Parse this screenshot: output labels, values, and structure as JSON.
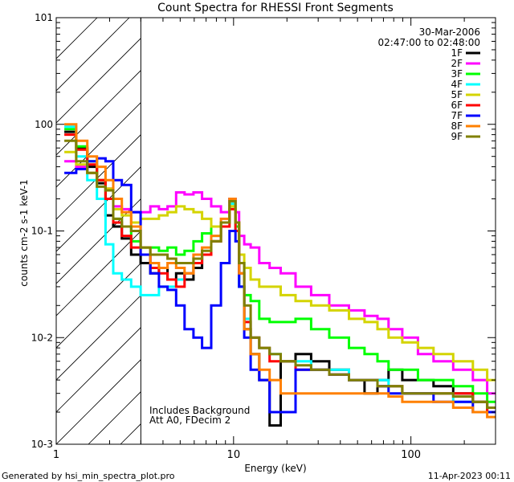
{
  "chart_data": {
    "type": "line",
    "title": "Count Spectra for RHESSI Front Segments",
    "xlabel": "Energy (keV)",
    "ylabel": "counts cm-2 s-1 keV-1",
    "xscale": "log",
    "yscale": "log",
    "xlim": [
      1,
      300
    ],
    "ylim": [
      0.001,
      10
    ],
    "x_tick_labels": [
      "1",
      "10",
      "100"
    ],
    "y_tick_labels": [
      "10-3",
      "10-2",
      "10-1",
      "100",
      "101"
    ],
    "date": "30-Mar-2006",
    "time_range": "02:47:00 to 02:48:00",
    "annotations": [
      "Includes Background",
      "Att A0, FDecim 2"
    ],
    "attenuator_cutoff_keV": 3,
    "footer_left": "Generated by hsi_min_spectra_plot.pro",
    "footer_right": "11-Apr-2023 00:11",
    "x": [
      1.2,
      1.4,
      1.6,
      1.8,
      2.0,
      2.2,
      2.5,
      2.8,
      3.2,
      3.6,
      4.0,
      4.5,
      5.0,
      5.6,
      6.3,
      7.0,
      8.0,
      9.0,
      10.0,
      10.5,
      11.0,
      12.0,
      13.0,
      15.0,
      17.0,
      20.0,
      25.0,
      30.0,
      40.0,
      50.0,
      60.0,
      70.0,
      80.0,
      100.0,
      120.0,
      150.0,
      200.0,
      250.0,
      290.0
    ],
    "series": [
      {
        "name": "1F",
        "color": "#000000",
        "values": [
          0.85,
          0.6,
          0.4,
          0.28,
          0.14,
          0.11,
          0.085,
          0.06,
          0.05,
          0.04,
          0.045,
          0.035,
          0.04,
          0.035,
          0.045,
          0.06,
          0.08,
          0.12,
          0.2,
          0.12,
          0.03,
          0.012,
          0.007,
          0.004,
          0.0015,
          0.006,
          0.007,
          0.006,
          0.005,
          0.004,
          0.003,
          0.004,
          0.005,
          0.004,
          0.004,
          0.0035,
          0.003,
          0.0025,
          0.002
        ]
      },
      {
        "name": "2F",
        "color": "#ff00ff",
        "values": [
          0.45,
          0.4,
          0.35,
          0.3,
          0.25,
          0.17,
          0.16,
          0.15,
          0.15,
          0.17,
          0.16,
          0.17,
          0.23,
          0.22,
          0.23,
          0.2,
          0.17,
          0.15,
          0.2,
          0.15,
          0.09,
          0.075,
          0.07,
          0.05,
          0.045,
          0.04,
          0.03,
          0.025,
          0.02,
          0.018,
          0.016,
          0.015,
          0.012,
          0.01,
          0.007,
          0.006,
          0.005,
          0.004,
          0.003
        ]
      },
      {
        "name": "3F",
        "color": "#00ff00",
        "values": [
          0.9,
          0.62,
          0.45,
          0.3,
          0.2,
          0.13,
          0.11,
          0.08,
          0.07,
          0.07,
          0.065,
          0.07,
          0.06,
          0.065,
          0.08,
          0.095,
          0.11,
          0.12,
          0.17,
          0.11,
          0.05,
          0.025,
          0.022,
          0.015,
          0.014,
          0.014,
          0.015,
          0.012,
          0.01,
          0.008,
          0.007,
          0.006,
          0.005,
          0.005,
          0.004,
          0.004,
          0.0035,
          0.003,
          0.0025
        ]
      },
      {
        "name": "4F",
        "color": "#00ffff",
        "values": [
          0.95,
          0.5,
          0.3,
          0.2,
          0.075,
          0.04,
          0.035,
          0.03,
          0.025,
          0.025,
          0.03,
          0.03,
          0.035,
          0.04,
          0.05,
          0.06,
          0.09,
          0.12,
          0.18,
          0.1,
          0.03,
          0.015,
          0.01,
          0.008,
          0.007,
          0.006,
          0.006,
          0.005,
          0.005,
          0.004,
          0.004,
          0.004,
          0.0035,
          0.003,
          0.003,
          0.003,
          0.0025,
          0.0025,
          0.002
        ]
      },
      {
        "name": "5F",
        "color": "#d4d400",
        "values": [
          0.55,
          0.42,
          0.35,
          0.3,
          0.25,
          0.16,
          0.14,
          0.12,
          0.13,
          0.13,
          0.14,
          0.15,
          0.17,
          0.16,
          0.15,
          0.13,
          0.11,
          0.12,
          0.17,
          0.12,
          0.06,
          0.045,
          0.035,
          0.03,
          0.03,
          0.025,
          0.022,
          0.02,
          0.018,
          0.015,
          0.014,
          0.012,
          0.01,
          0.009,
          0.008,
          0.007,
          0.006,
          0.005,
          0.004
        ]
      },
      {
        "name": "6F",
        "color": "#ff0000",
        "values": [
          0.8,
          0.58,
          0.42,
          0.3,
          0.2,
          0.12,
          0.09,
          0.07,
          0.06,
          0.045,
          0.04,
          0.035,
          0.03,
          0.04,
          0.05,
          0.06,
          0.08,
          0.11,
          0.16,
          0.1,
          0.04,
          0.014,
          0.01,
          0.008,
          0.006,
          0.006,
          0.005,
          0.005,
          0.0045,
          0.004,
          0.004,
          0.0035,
          0.0035,
          0.003,
          0.003,
          0.003,
          0.003,
          0.0025,
          0.002
        ]
      },
      {
        "name": "7F",
        "color": "#0000ff",
        "values": [
          0.35,
          0.38,
          0.45,
          0.48,
          0.45,
          0.3,
          0.27,
          0.15,
          0.06,
          0.04,
          0.03,
          0.028,
          0.02,
          0.012,
          0.01,
          0.008,
          0.02,
          0.05,
          0.1,
          0.08,
          0.03,
          0.01,
          0.005,
          0.004,
          0.002,
          0.002,
          0.005,
          0.005,
          0.0045,
          0.004,
          0.004,
          0.0035,
          0.003,
          0.003,
          0.003,
          0.0025,
          0.0025,
          0.002,
          0.002
        ]
      },
      {
        "name": "8F",
        "color": "#ff8000",
        "values": [
          1.0,
          0.7,
          0.5,
          0.4,
          0.3,
          0.2,
          0.15,
          0.11,
          0.07,
          0.05,
          0.045,
          0.05,
          0.045,
          0.04,
          0.06,
          0.07,
          0.09,
          0.13,
          0.2,
          0.12,
          0.04,
          0.012,
          0.007,
          0.005,
          0.004,
          0.003,
          0.003,
          0.003,
          0.003,
          0.003,
          0.003,
          0.003,
          0.0028,
          0.0025,
          0.0025,
          0.0025,
          0.0022,
          0.002,
          0.0018
        ]
      },
      {
        "name": "9F",
        "color": "#808000",
        "values": [
          0.7,
          0.45,
          0.35,
          0.26,
          0.24,
          0.13,
          0.11,
          0.1,
          0.07,
          0.06,
          0.06,
          0.055,
          0.05,
          0.05,
          0.055,
          0.065,
          0.08,
          0.12,
          0.19,
          0.12,
          0.05,
          0.02,
          0.01,
          0.008,
          0.007,
          0.006,
          0.0055,
          0.005,
          0.0045,
          0.004,
          0.004,
          0.0035,
          0.0035,
          0.003,
          0.003,
          0.003,
          0.0028,
          0.0025,
          0.0022
        ]
      }
    ]
  }
}
